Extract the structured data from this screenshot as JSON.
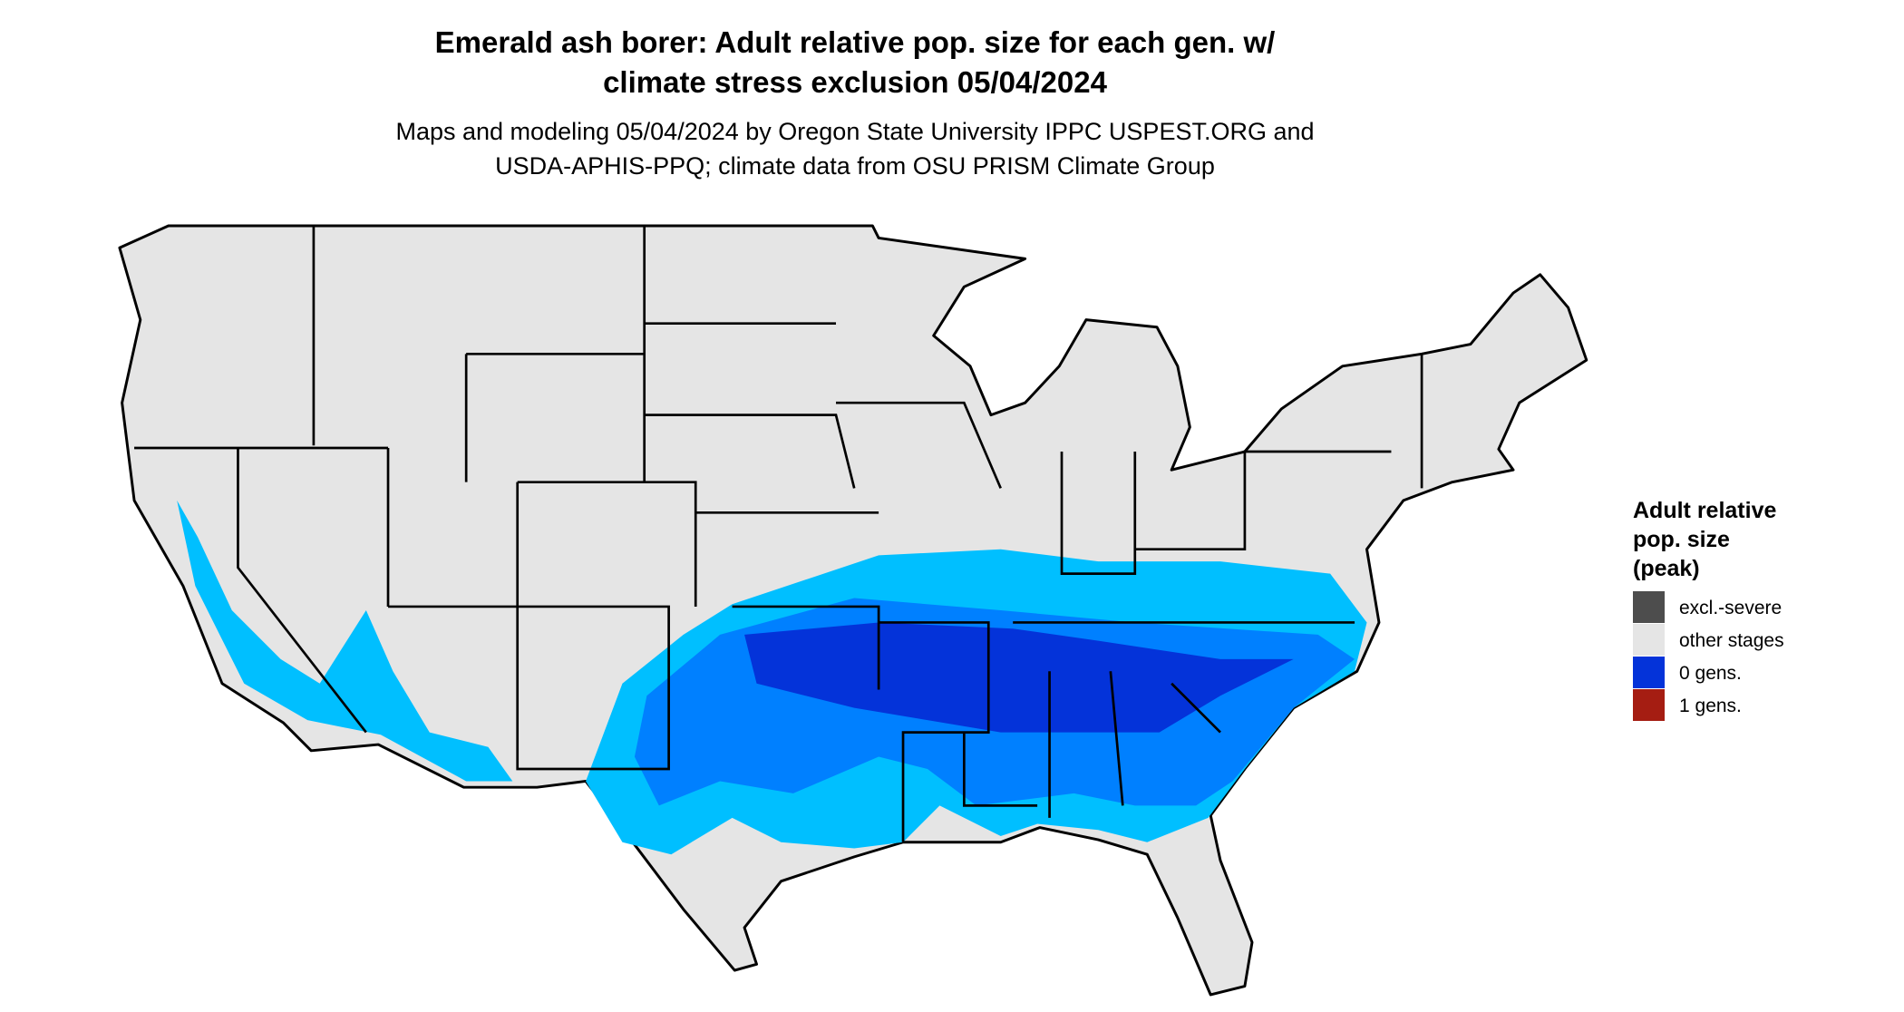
{
  "header": {
    "title": [
      "Emerald ash borer: Adult relative pop. size for each gen. w/",
      "climate stress exclusion 05/04/2024"
    ],
    "subtitle": [
      "Maps and modeling 05/04/2024 by Oregon State University IPPC USPEST.ORG and",
      "USDA-APHIS-PPQ; climate data from OSU PRISM Climate Group"
    ]
  },
  "legend": {
    "title": [
      "Adult relative",
      "pop. size",
      "(peak)"
    ],
    "items": [
      {
        "label": "excl.-severe",
        "color": "#4d4d4d"
      },
      {
        "label": "other stages",
        "color": "#e5e5e5"
      },
      {
        "label": "0 gens.",
        "color": "#0433d9"
      },
      {
        "label": "1 gens.",
        "color": "#a51d12"
      }
    ]
  }
}
